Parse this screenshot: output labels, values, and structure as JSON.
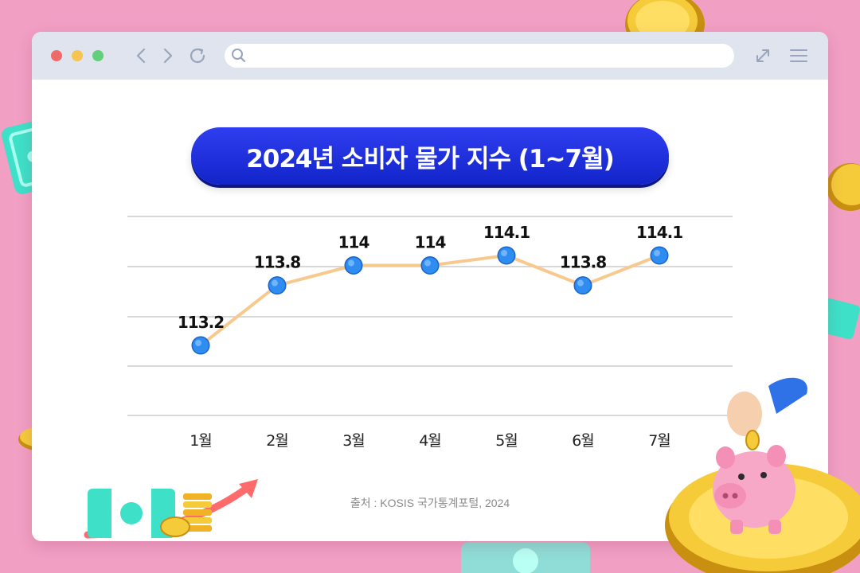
{
  "window": {
    "controls": [
      "close",
      "minimize",
      "maximize"
    ],
    "nav_icons": [
      "back-icon",
      "forward-icon",
      "reload-icon",
      "search-icon",
      "expand-icon",
      "menu-icon"
    ]
  },
  "colors": {
    "background": "#f29fc4",
    "title_pill": "#1a2ee0",
    "line": "#f7c98e",
    "marker": "#2f8cf0"
  },
  "chart_data": {
    "type": "line",
    "title": "2024년 소비자 물가 지수 (1~7월)",
    "categories": [
      "1월",
      "2월",
      "3월",
      "4월",
      "5월",
      "6월",
      "7월"
    ],
    "series": [
      {
        "values": [
          113.2,
          113.8,
          114,
          114,
          114.1,
          113.8,
          114.1
        ]
      }
    ],
    "data_labels": [
      "113.2",
      "113.8",
      "114",
      "114",
      "114.1",
      "113.8",
      "114.1"
    ],
    "grid": true,
    "legend": "none"
  },
  "source": "출처 : KOSIS 국가통계포털, 2024",
  "decorations": [
    "coin-icon",
    "banknote-icon",
    "piggy-bank-icon",
    "money-stack-icon"
  ]
}
